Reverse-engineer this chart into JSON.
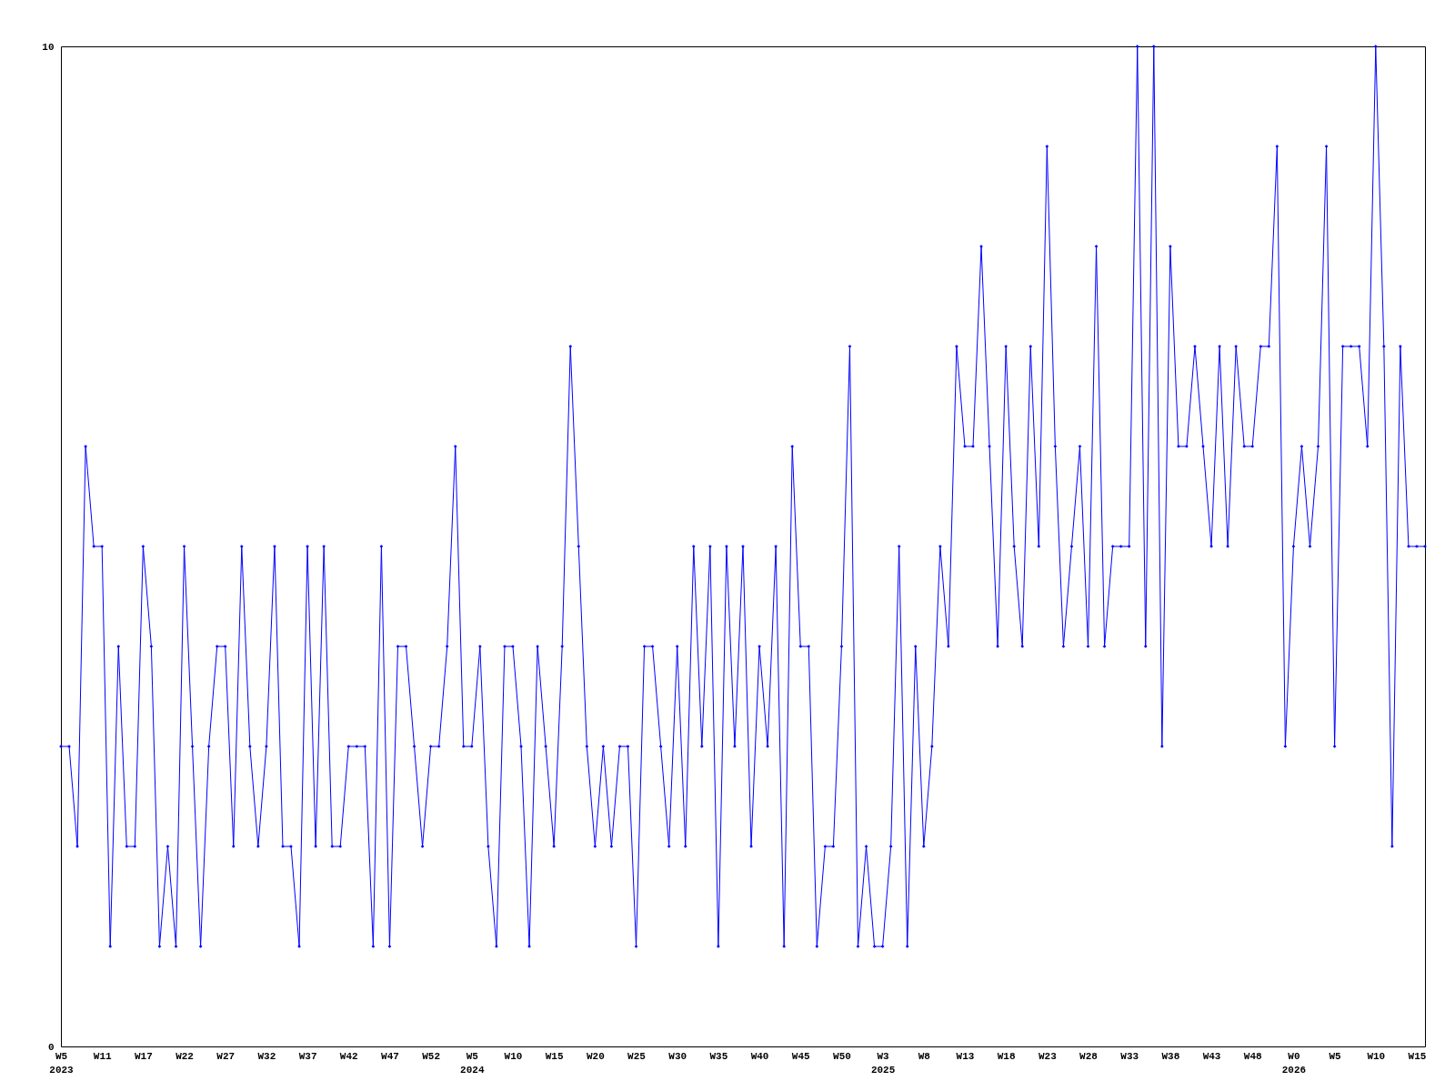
{
  "chart_data": {
    "type": "line",
    "categories": [
      "W5\n2023",
      null,
      null,
      null,
      null,
      "W11",
      null,
      null,
      null,
      null,
      "W17",
      null,
      null,
      null,
      null,
      "W22",
      null,
      null,
      null,
      null,
      "W27",
      null,
      null,
      null,
      null,
      "W32",
      null,
      null,
      null,
      null,
      "W37",
      null,
      null,
      null,
      null,
      "W42",
      null,
      null,
      null,
      null,
      "W47",
      null,
      null,
      null,
      null,
      "W52",
      null,
      null,
      null,
      null,
      "W5\n2024",
      null,
      null,
      null,
      null,
      "W10",
      null,
      null,
      null,
      null,
      "W15",
      null,
      null,
      null,
      null,
      "W20",
      null,
      null,
      null,
      null,
      "W25",
      null,
      null,
      null,
      null,
      "W30",
      null,
      null,
      null,
      null,
      "W35",
      null,
      null,
      null,
      null,
      "W40",
      null,
      null,
      null,
      null,
      "W45",
      null,
      null,
      null,
      null,
      "W50",
      null,
      null,
      null,
      null,
      "W3\n2025",
      null,
      null,
      null,
      null,
      "W8",
      null,
      null,
      null,
      null,
      "W13",
      null,
      null,
      null,
      null,
      "W18",
      null,
      null,
      null,
      null,
      "W23",
      null,
      null,
      null,
      null,
      "W28",
      null,
      null,
      null,
      null,
      "W33",
      null,
      null,
      null,
      null,
      "W38",
      null,
      null,
      null,
      null,
      "W43",
      null,
      null,
      null,
      null,
      "W48",
      null,
      null,
      null,
      null,
      "W0\n2026",
      null,
      null,
      null,
      null,
      "W5",
      null,
      null,
      null,
      null,
      "W10",
      null,
      null,
      null,
      null,
      "W15",
      null
    ],
    "values": [
      3,
      3,
      2,
      6,
      5,
      5,
      1,
      4,
      2,
      2,
      5,
      4,
      1,
      2,
      1,
      5,
      3,
      1,
      3,
      4,
      4,
      2,
      5,
      3,
      2,
      3,
      5,
      2,
      2,
      1,
      5,
      2,
      5,
      2,
      2,
      3,
      3,
      3,
      1,
      5,
      1,
      4,
      4,
      3,
      2,
      3,
      3,
      4,
      6,
      3,
      3,
      4,
      2,
      1,
      4,
      4,
      3,
      1,
      4,
      3,
      2,
      4,
      7,
      5,
      3,
      2,
      3,
      2,
      3,
      3,
      1,
      4,
      4,
      3,
      2,
      4,
      2,
      5,
      3,
      5,
      1,
      5,
      3,
      5,
      2,
      4,
      3,
      5,
      1,
      6,
      4,
      4,
      1,
      2,
      2,
      4,
      7,
      1,
      2,
      1,
      1,
      2,
      5,
      1,
      4,
      2,
      3,
      5,
      4,
      7,
      6,
      6,
      8,
      6,
      4,
      7,
      5,
      4,
      7,
      5,
      9,
      6,
      4,
      5,
      6,
      4,
      8,
      4,
      5,
      5,
      5,
      10,
      4,
      10,
      3,
      8,
      6,
      6,
      7,
      6,
      5,
      7,
      5,
      7,
      6,
      6,
      7,
      7,
      9,
      3,
      5,
      6,
      5,
      6,
      9,
      3,
      7,
      7,
      7,
      6,
      10,
      7,
      2,
      7,
      5,
      5,
      5
    ],
    "color": "#0000ff",
    "marker": "diamond",
    "ylim": [
      0,
      10
    ],
    "yticks": [
      0,
      10
    ],
    "grid": false,
    "legend": false
  }
}
